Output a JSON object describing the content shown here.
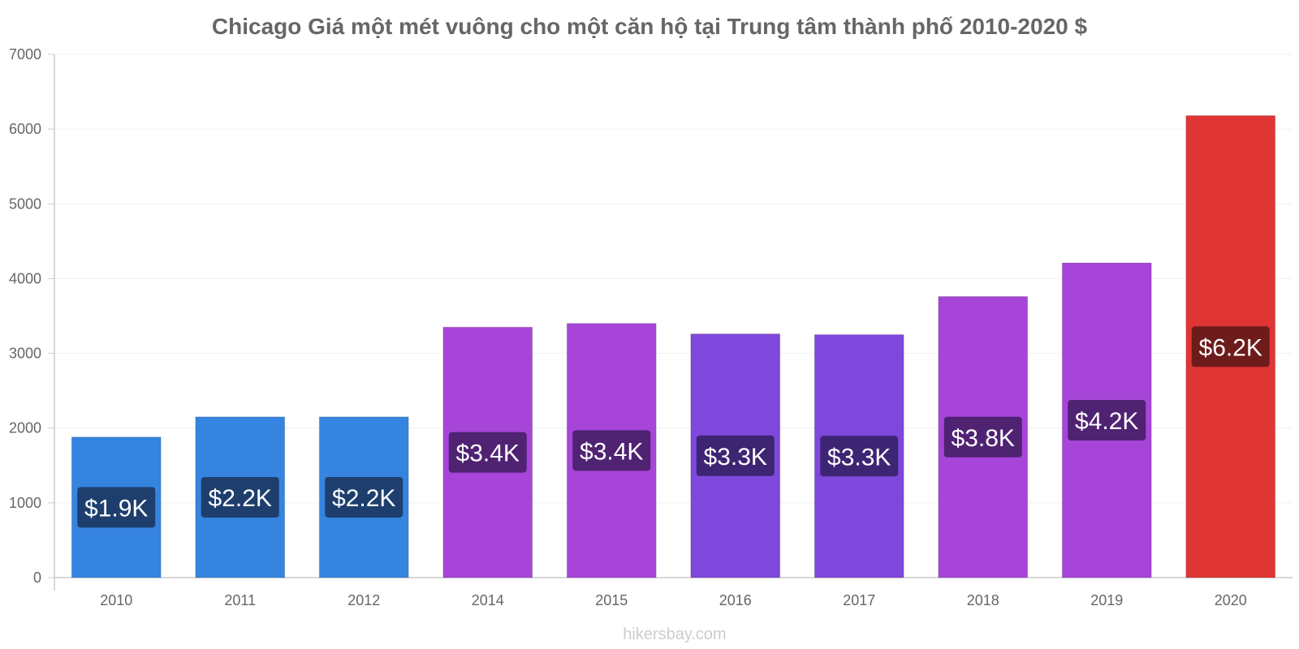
{
  "chart_data": {
    "type": "bar",
    "title": "Chicago Giá một mét vuông cho một căn hộ tại Trung tâm thành phố 2010-2020 $",
    "xlabel": "",
    "ylabel": "",
    "ylim": [
      0,
      7000
    ],
    "yticks": [
      "0",
      "1000",
      "2000",
      "3000",
      "4000",
      "5000",
      "6000",
      "7000"
    ],
    "grid": true,
    "legend": "none",
    "categories": [
      "2010",
      "2011",
      "2012",
      "2014",
      "2015",
      "2016",
      "2017",
      "2018",
      "2019",
      "2020"
    ],
    "values": [
      1880,
      2150,
      2150,
      3350,
      3400,
      3260,
      3250,
      3760,
      4210,
      6180
    ],
    "data_labels": [
      "$1.9K",
      "$2.2K",
      "$2.2K",
      "$3.4K",
      "$3.4K",
      "$3.3K",
      "$3.3K",
      "$3.8K",
      "$4.2K",
      "$6.2K"
    ],
    "bar_colors": [
      "#3584e0",
      "#3584e0",
      "#3584e0",
      "#a745d8",
      "#a745d8",
      "#7f48dc",
      "#7f48dc",
      "#a745d8",
      "#a745d8",
      "#e03535"
    ],
    "label_colors": [
      "#1e3f6e",
      "#1e3f6e",
      "#1e3f6e",
      "#4f2272",
      "#4f2272",
      "#3d2573",
      "#3d2573",
      "#4f2272",
      "#4f2272",
      "#6e1b1b"
    ]
  },
  "watermark": "hikersbay.com"
}
